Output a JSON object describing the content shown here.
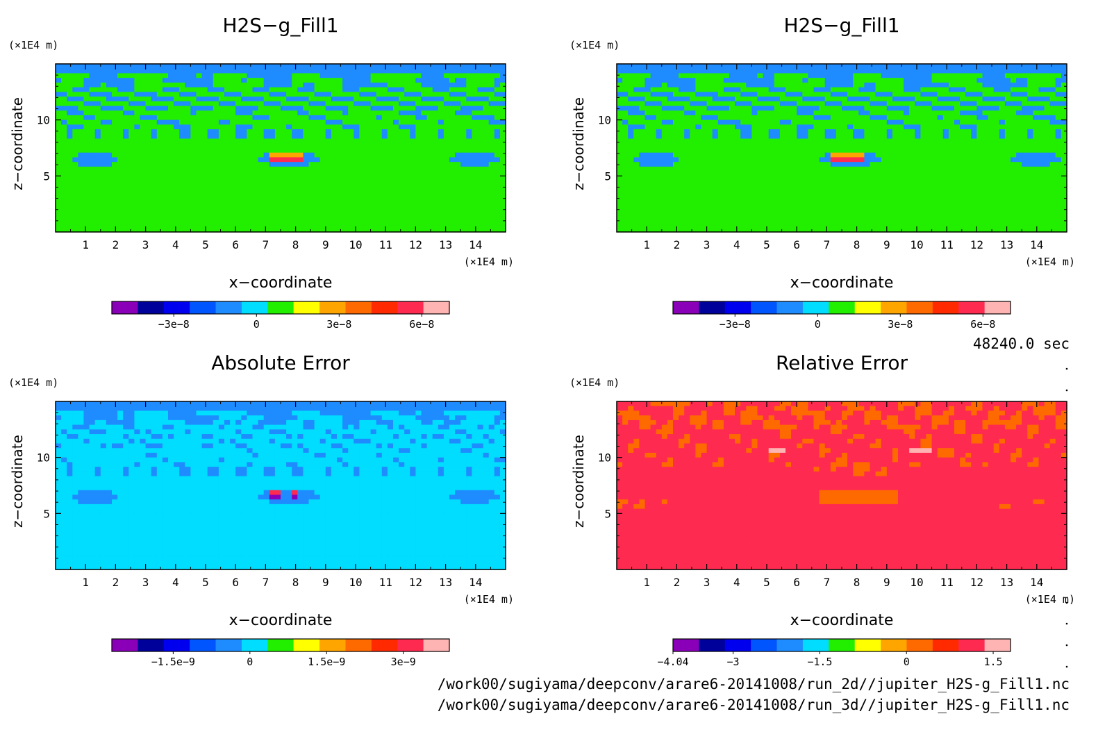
{
  "time_label": "48240.0 sec",
  "files": [
    "/work00/sugiyama/deepconv/arare6-20141008/run_2d//jupiter_H2S-g_Fill1.nc",
    "/work00/sugiyama/deepconv/arare6-20141008/run_3d//jupiter_H2S-g_Fill1.nc"
  ],
  "colors": {
    "ramp": [
      "#8a00b8",
      "#00009a",
      "#0000ee",
      "#0055ff",
      "#1e8cff",
      "#00ddff",
      "#22ee00",
      "#ffff00",
      "#ffa500",
      "#ff6a00",
      "#ff2a00",
      "#ff2a50",
      "#ffb4b4"
    ],
    "background_field": "#00ddff",
    "contour_band": "#1e8cff",
    "relerr_background": "#ff6a00",
    "relerr_band": "#ffa500"
  },
  "chart_data": [
    {
      "type": "heatmap",
      "title": "H2S−g_Fill1",
      "xlabel": "x−coordinate",
      "ylabel": "z−coordinate",
      "x_unit_label": "(×1E4 m)",
      "y_unit_label": "(×1E4 m)",
      "xlim": [
        0,
        15
      ],
      "ylim": [
        0,
        15
      ],
      "x_ticks": [
        "1",
        "2",
        "3",
        "4",
        "5",
        "6",
        "7",
        "8",
        "9",
        "10",
        "11",
        "12",
        "13",
        "14"
      ],
      "y_ticks": [
        "5",
        "10"
      ],
      "colorbar": {
        "range": [
          -5.25e-08,
          7e-08
        ],
        "levels": 11,
        "labels": [
          {
            "value": -3e-08,
            "text": "−3e−8"
          },
          {
            "value": 0,
            "text": "0"
          },
          {
            "value": 3e-08,
            "text": "3e−8"
          },
          {
            "value": 6e-08,
            "text": "6e−8"
          }
        ]
      },
      "field": "mixing_ratio"
    },
    {
      "type": "heatmap",
      "title": "H2S−g_Fill1",
      "xlabel": "x−coordinate",
      "ylabel": "z−coordinate",
      "x_unit_label": "(×1E4 m)",
      "y_unit_label": "(×1E4 m)",
      "xlim": [
        0,
        15
      ],
      "ylim": [
        0,
        15
      ],
      "x_ticks": [
        "1",
        "2",
        "3",
        "4",
        "5",
        "6",
        "7",
        "8",
        "9",
        "10",
        "11",
        "12",
        "13",
        "14"
      ],
      "y_ticks": [
        "5",
        "10"
      ],
      "colorbar": {
        "range": [
          -5.25e-08,
          7e-08
        ],
        "levels": 11,
        "labels": [
          {
            "value": -3e-08,
            "text": "−3e−8"
          },
          {
            "value": 0,
            "text": "0"
          },
          {
            "value": 3e-08,
            "text": "3e−8"
          },
          {
            "value": 6e-08,
            "text": "6e−8"
          }
        ]
      },
      "field": "mixing_ratio"
    },
    {
      "type": "heatmap",
      "title": "Absolute Error",
      "xlabel": "x−coordinate",
      "ylabel": "z−coordinate",
      "x_unit_label": "(×1E4 m)",
      "y_unit_label": "(×1E4 m)",
      "xlim": [
        0,
        15
      ],
      "ylim": [
        0,
        15
      ],
      "x_ticks": [
        "1",
        "2",
        "3",
        "4",
        "5",
        "6",
        "7",
        "8",
        "9",
        "10",
        "11",
        "12",
        "13",
        "14"
      ],
      "y_ticks": [
        "5",
        "10"
      ],
      "colorbar": {
        "range": [
          -2.7e-09,
          3.9e-09
        ],
        "levels": 11,
        "labels": [
          {
            "value": -1.5e-09,
            "text": "−1.5e−9"
          },
          {
            "value": 0,
            "text": "0"
          },
          {
            "value": 1.5e-09,
            "text": "1.5e−9"
          },
          {
            "value": 3e-09,
            "text": "3e−9"
          }
        ]
      },
      "field": "absolute_error"
    },
    {
      "type": "heatmap",
      "title": "Relative Error",
      "xlabel": "x−coordinate",
      "ylabel": "z−coordinate",
      "x_unit_label": "(×1E4 m)",
      "y_unit_label": "(×1E4 m)",
      "xlim": [
        0,
        15
      ],
      "ylim": [
        0,
        15
      ],
      "x_ticks": [
        "1",
        "2",
        "3",
        "4",
        "5",
        "6",
        "7",
        "8",
        "9",
        "10",
        "11",
        "12",
        "13",
        "14"
      ],
      "y_ticks": [
        "5",
        "10"
      ],
      "colorbar": {
        "range": [
          -4.04,
          1.8
        ],
        "levels": 11,
        "labels": [
          {
            "value": -4.04,
            "text": "−4.04"
          },
          {
            "value": -3,
            "text": "−3"
          },
          {
            "value": -1.5,
            "text": "−1.5"
          },
          {
            "value": 0,
            "text": "0"
          },
          {
            "value": 1.5,
            "text": "1.5"
          }
        ]
      },
      "field": "relative_error"
    }
  ]
}
